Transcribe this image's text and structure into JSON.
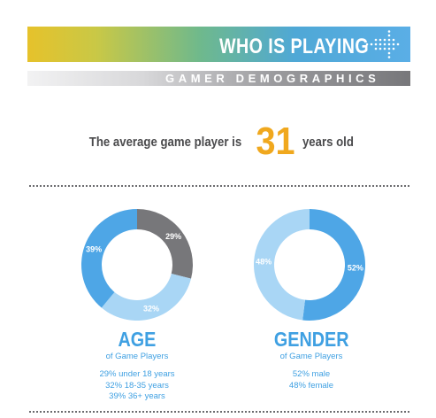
{
  "header": {
    "title": "WHO IS PLAYING",
    "subtitle": "GAMER DEMOGRAPHICS"
  },
  "average": {
    "prefix": "The average game player is",
    "number": "31",
    "suffix": "years old"
  },
  "colors": {
    "dark_blue": "#4ea6e6",
    "light_blue": "#a9d6f5",
    "gray": "#77777a",
    "accent": "#f0a81e",
    "caption": "#3fa0e2"
  },
  "chart_data": [
    {
      "type": "pie",
      "title": "AGE",
      "subtitle": "of Game Players",
      "categories": [
        "under 18 years",
        "18-35 years",
        "36+ years"
      ],
      "values": [
        29,
        32,
        39
      ],
      "labels": [
        "29%",
        "32%",
        "39%"
      ],
      "colors": [
        "#77777a",
        "#a9d6f5",
        "#4ea6e6"
      ],
      "details": [
        "29% under 18 years",
        "32% 18-35 years",
        "39% 36+ years"
      ]
    },
    {
      "type": "pie",
      "title": "GENDER",
      "subtitle": "of Game Players",
      "categories": [
        "male",
        "female"
      ],
      "values": [
        52,
        48
      ],
      "labels": [
        "52%",
        "48%"
      ],
      "colors": [
        "#4ea6e6",
        "#a9d6f5"
      ],
      "details": [
        "52% male",
        "48% female"
      ]
    }
  ]
}
